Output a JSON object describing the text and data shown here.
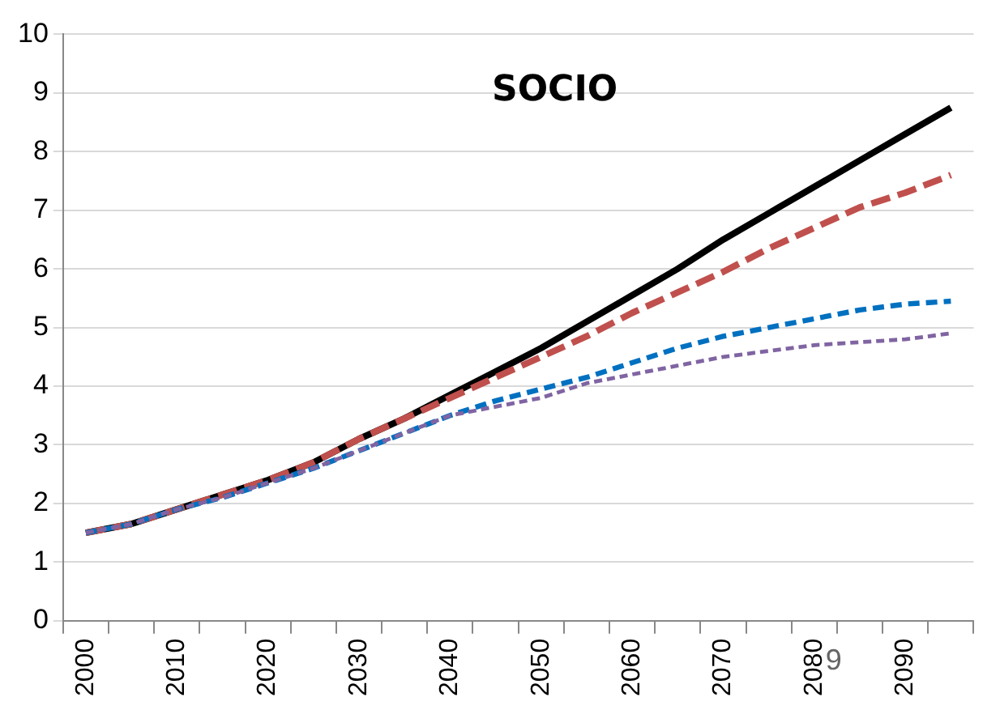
{
  "chart_data": {
    "type": "line",
    "title": "SOCIO",
    "categories": [
      "2000",
      null,
      "2010",
      null,
      "2020",
      null,
      "2030",
      null,
      "2040",
      null,
      "2050",
      null,
      "2060",
      null,
      "2070",
      null,
      "2080",
      null,
      "2090",
      null
    ],
    "series": [
      {
        "color": "#000000",
        "line_style": "solid",
        "values": [
          1.5,
          1.65,
          1.9,
          2.15,
          2.4,
          2.7,
          3.1,
          3.45,
          3.85,
          4.25,
          4.65,
          5.1,
          5.55,
          6.0,
          6.5,
          6.95,
          7.4,
          7.85,
          8.3,
          8.75
        ]
      },
      {
        "color": "#c0504d",
        "line_style": "dashed",
        "values": [
          1.5,
          1.65,
          1.9,
          2.15,
          2.4,
          2.7,
          3.1,
          3.45,
          3.8,
          4.15,
          4.5,
          4.85,
          5.25,
          5.6,
          5.95,
          6.35,
          6.7,
          7.05,
          7.3,
          7.6
        ]
      },
      {
        "color": "#0070c0",
        "line_style": "dashed",
        "values": [
          1.5,
          1.65,
          1.9,
          2.1,
          2.35,
          2.6,
          2.9,
          3.2,
          3.5,
          3.75,
          3.95,
          4.15,
          4.4,
          4.65,
          4.85,
          5.0,
          5.15,
          5.3,
          5.4,
          5.45
        ]
      },
      {
        "color": "#8064a2",
        "line_style": "dotted",
        "values": [
          1.5,
          1.65,
          1.9,
          2.1,
          2.35,
          2.6,
          2.9,
          3.2,
          3.5,
          3.65,
          3.8,
          4.05,
          4.2,
          4.35,
          4.5,
          4.6,
          4.7,
          4.75,
          4.8,
          4.9
        ]
      }
    ],
    "ylim": [
      0,
      10
    ],
    "yticks": [
      0,
      1,
      2,
      3,
      4,
      5,
      6,
      7,
      8,
      9,
      10
    ],
    "grid": "y",
    "legend": false,
    "marker": "none",
    "annotations": [
      "9"
    ]
  }
}
